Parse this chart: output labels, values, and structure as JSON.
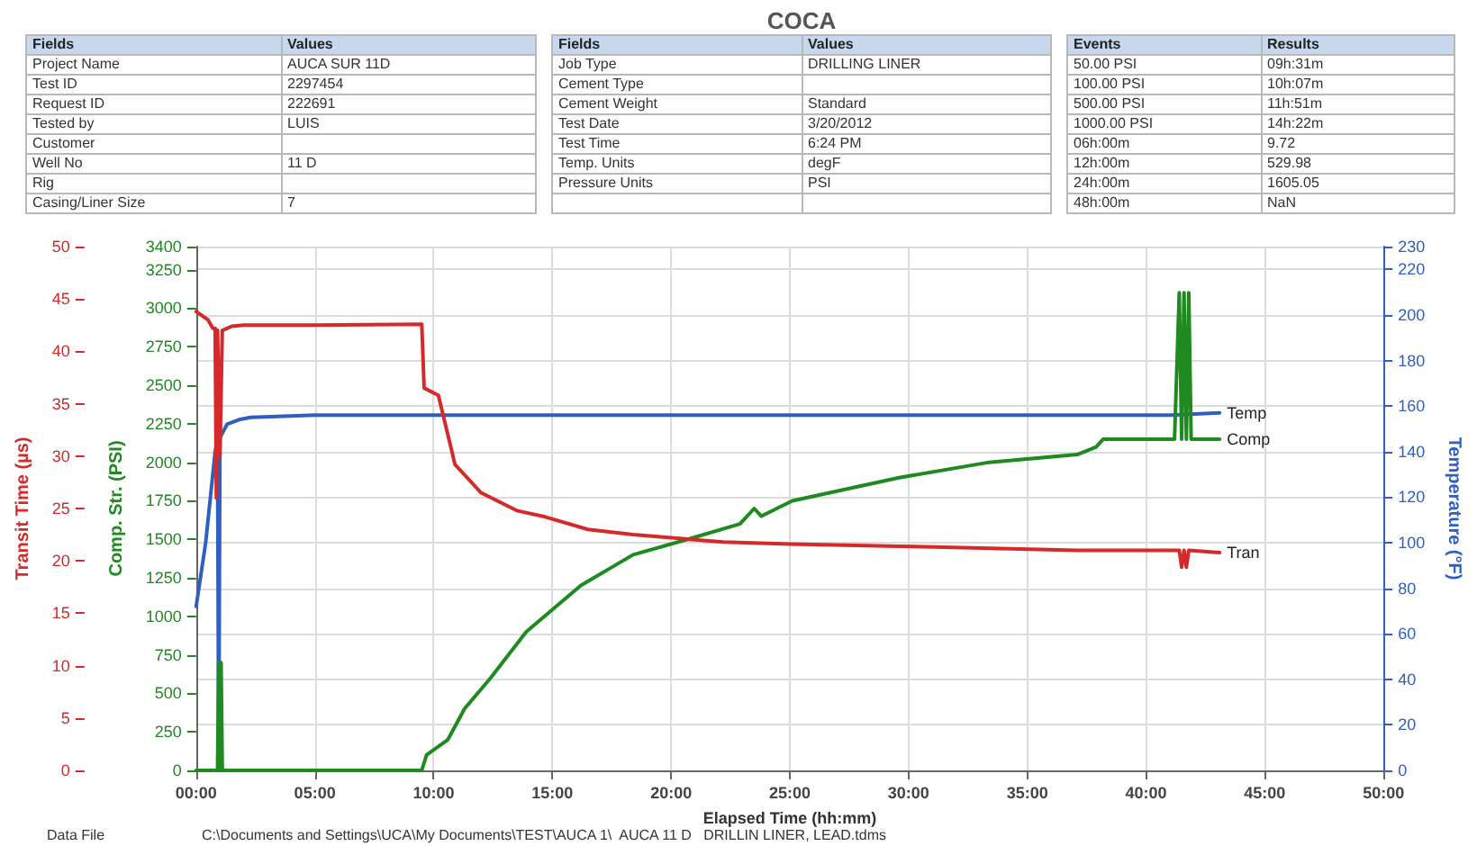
{
  "chart_data": [
    {
      "type": "other",
      "categories": [
        "Fields",
        "Values"
      ],
      "cell_labels": [
        [
          "Project Name",
          "AUCA SUR 11D"
        ],
        [
          "Test ID",
          "2297454"
        ],
        [
          "Request ID",
          "222691"
        ],
        [
          "Tested by",
          "LUIS"
        ],
        [
          "Customer",
          null
        ],
        [
          "Well No",
          "11 D"
        ],
        [
          "Rig",
          null
        ],
        [
          "Casing/Liner Size",
          "7"
        ]
      ]
    },
    {
      "type": "other",
      "title": "COCA",
      "categories": [
        "Fields",
        "Values"
      ],
      "cell_labels": [
        [
          "Job Type",
          "DRILLING LINER"
        ],
        [
          "Cement Type",
          null
        ],
        [
          "Cement Weight",
          "Standard"
        ],
        [
          "Test Date",
          "3/20/2012"
        ],
        [
          "Test Time",
          "6:24 PM"
        ],
        [
          "Temp. Units",
          "degF"
        ],
        [
          "Pressure Units",
          "PSI"
        ],
        [
          null,
          null
        ]
      ]
    },
    {
      "type": "other",
      "categories": [
        "Events",
        "Results"
      ],
      "cell_labels": [
        [
          "50.00 PSI",
          "09h:31m"
        ],
        [
          "100.00 PSI",
          "10h:07m"
        ],
        [
          "500.00 PSI",
          "11h:51m"
        ],
        [
          "1000.00 PSI",
          "14h:22m"
        ],
        [
          "06h:00m",
          "9.72"
        ],
        [
          "12h:00m",
          "529.98"
        ],
        [
          "24h:00m",
          "1605.05"
        ],
        [
          "48h:00m",
          "NaN"
        ]
      ]
    },
    {
      "type": "line",
      "xlabel": "Elapsed Time (hh:mm)",
      "ylabel": "Transit Time (µs)",
      "y2label": "Comp. Str. (PSI)",
      "y3label": "Temperature (°F)",
      "grid": true,
      "legend": false,
      "marker": "none",
      "line_style": "solid",
      "xlim": [
        0,
        50
      ],
      "xticks": [
        {
          "value": 0,
          "label": "00:00"
        },
        {
          "value": 5,
          "label": "05:00"
        },
        {
          "value": 10,
          "label": "10:00"
        },
        {
          "value": 15,
          "label": "15:00"
        },
        {
          "value": 20,
          "label": "20:00"
        },
        {
          "value": 25,
          "label": "25:00"
        },
        {
          "value": 30,
          "label": "30:00"
        },
        {
          "value": 35,
          "label": "35:00"
        },
        {
          "value": 40,
          "label": "40:00"
        },
        {
          "value": 45,
          "label": "45:00"
        },
        {
          "value": 50,
          "label": "50:00"
        }
      ],
      "ylim": [
        0,
        50
      ],
      "yticks": [
        0,
        5,
        10,
        15,
        20,
        25,
        30,
        35,
        40,
        45,
        50
      ],
      "y2lim": [
        0,
        3400
      ],
      "y2ticks": [
        0,
        250,
        500,
        750,
        1000,
        1250,
        1500,
        1750,
        2000,
        2250,
        2500,
        2750,
        3000,
        3250,
        3400
      ],
      "y3lim": [
        0,
        230
      ],
      "y3ticks": [
        0,
        20,
        40,
        60,
        80,
        100,
        120,
        140,
        160,
        180,
        200,
        220,
        230
      ],
      "series": [
        {
          "name": "Temp",
          "color": "#2f5fc0",
          "axis": "y3",
          "x": [
            0,
            0.4,
            0.8,
            0.9,
            0.95,
            1.0,
            1.3,
            1.8,
            2.3,
            5,
            10,
            20,
            30,
            38,
            41,
            43.1
          ],
          "values": [
            72,
            100,
            140,
            145,
            0,
            146,
            152,
            154,
            155,
            156,
            156,
            156,
            156,
            156,
            156,
            157
          ]
        },
        {
          "name": "Comp",
          "color": "#1f8a1f",
          "axis": "y2",
          "x": [
            0,
            0.9,
            0.95,
            1.0,
            1.05,
            1.1,
            9.5,
            9.7,
            10.6,
            11.3,
            12.4,
            13.9,
            16.2,
            18.4,
            20.7,
            22.9,
            23.5,
            23.8,
            25.1,
            29.6,
            33.4,
            37.1,
            37.9,
            38.2,
            41.2,
            41.4,
            41.5,
            41.6,
            41.7,
            41.8,
            41.9,
            43.1
          ],
          "values": [
            0,
            0,
            700,
            0,
            700,
            0,
            0,
            100,
            200,
            400,
            600,
            900,
            1200,
            1400,
            1500,
            1600,
            1700,
            1650,
            1750,
            1900,
            2000,
            2050,
            2100,
            2150,
            2150,
            3100,
            2150,
            3100,
            2150,
            3100,
            2150,
            2150
          ]
        },
        {
          "name": "Tran",
          "color": "#d42a2a",
          "axis": "y",
          "x": [
            0,
            0.5,
            0.7,
            0.8,
            0.85,
            0.9,
            1.0,
            1.1,
            1.5,
            2,
            5,
            9.5,
            9.6,
            10.2,
            10.9,
            12,
            13.5,
            14.7,
            16.5,
            18.4,
            22.2,
            25,
            29.6,
            37.1,
            41.4,
            41.5,
            41.6,
            41.7,
            41.8,
            43.1
          ],
          "values": [
            43.8,
            43,
            42.2,
            42.2,
            26,
            42,
            30,
            42,
            42.4,
            42.5,
            42.5,
            42.6,
            36.5,
            35.8,
            29.2,
            26.5,
            24.8,
            24.2,
            23,
            22.5,
            21.8,
            21.6,
            21.4,
            21,
            21,
            19.4,
            21,
            19.4,
            21,
            20.8
          ]
        }
      ],
      "annotations": [
        "Data File",
        "C:\\Documents and Settings\\UCA\\My Documents\\TEST\\AUCA 1\\  AUCA 11 D   DRILLIN LINER, LEAD.tdms"
      ]
    }
  ]
}
